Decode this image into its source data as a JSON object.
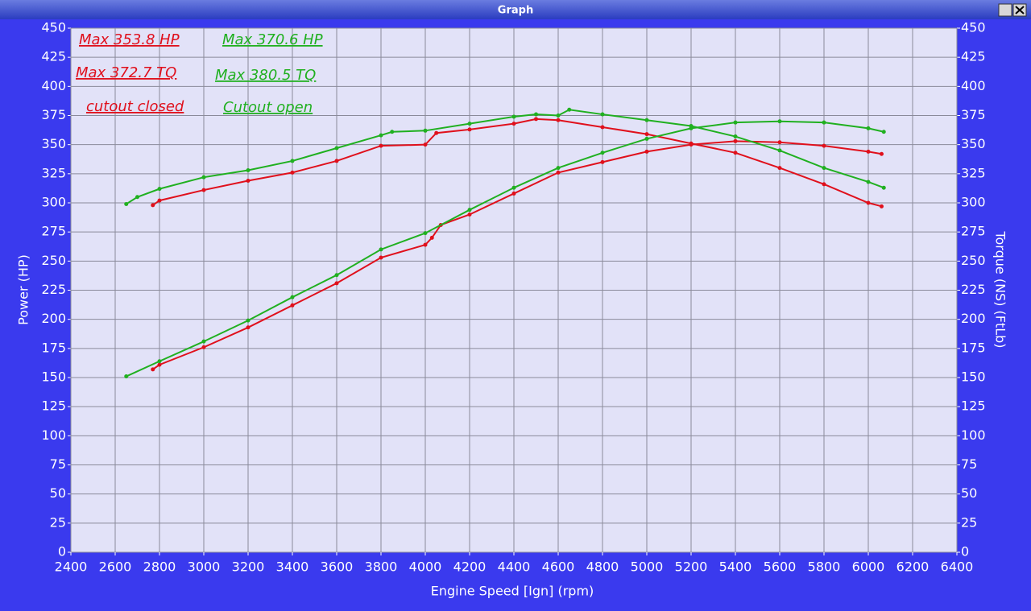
{
  "window_title": "Graph",
  "chart_data": {
    "type": "line",
    "xlabel": "Engine Speed [Ign] (rpm)",
    "ylabel": "Power (HP)",
    "y2label": "Torque (NS) (FtLb)",
    "annotations": [
      "Max 353.8 HP",
      "Max 372.7 TQ",
      "cutout closed",
      "Max 370.6 HP",
      "Max 380.5 TQ",
      "Cutout open"
    ],
    "xlim": [
      2400,
      6400
    ],
    "xticks": [
      2400,
      2600,
      2800,
      3000,
      3200,
      3400,
      3600,
      3800,
      4000,
      4200,
      4400,
      4600,
      4800,
      5000,
      5200,
      5400,
      5600,
      5800,
      6000,
      6200,
      6400
    ],
    "ylim": [
      0,
      450
    ],
    "yticks": [
      0,
      25,
      50,
      75,
      100,
      125,
      150,
      175,
      200,
      225,
      250,
      275,
      300,
      325,
      350,
      375,
      400,
      425,
      450
    ],
    "y2lim": [
      0,
      450
    ],
    "y2ticks": [
      0,
      25,
      50,
      75,
      100,
      125,
      150,
      175,
      200,
      225,
      250,
      275,
      300,
      325,
      350,
      375,
      400,
      425,
      450
    ],
    "grid": true,
    "series": [
      {
        "color": "#e0101c",
        "x": [
          2770,
          2800,
          3000,
          3200,
          3400,
          3600,
          3800,
          4000,
          4030,
          4070,
          4200,
          4400,
          4600,
          4800,
          5000,
          5200,
          5400,
          5600,
          5800,
          6000,
          6060
        ],
        "values": [
          157,
          161,
          176,
          193,
          212,
          231,
          253,
          264,
          270,
          281,
          290,
          308,
          326,
          335,
          344,
          350,
          353,
          352,
          349,
          344,
          342
        ]
      },
      {
        "color": "#e0101c",
        "axis": "y2",
        "x": [
          2770,
          2800,
          3000,
          3200,
          3400,
          3600,
          3800,
          4000,
          4050,
          4200,
          4400,
          4500,
          4600,
          4800,
          5000,
          5200,
          5400,
          5600,
          5800,
          6000,
          6060
        ],
        "values": [
          298,
          302,
          311,
          319,
          326,
          336,
          349,
          350,
          360,
          363,
          368,
          372,
          371,
          365,
          359,
          351,
          343,
          330,
          316,
          300,
          297
        ]
      },
      {
        "color": "#20b020",
        "x": [
          2650,
          2800,
          3000,
          3200,
          3400,
          3600,
          3800,
          4000,
          4200,
          4400,
          4600,
          4800,
          5000,
          5200,
          5400,
          5600,
          5800,
          6000,
          6070
        ],
        "values": [
          151,
          164,
          181,
          199,
          219,
          238,
          260,
          274,
          294,
          313,
          330,
          343,
          355,
          364,
          369,
          370,
          369,
          364,
          361
        ]
      },
      {
        "color": "#20b020",
        "axis": "y2",
        "x": [
          2650,
          2700,
          2800,
          3000,
          3200,
          3400,
          3600,
          3800,
          3850,
          4000,
          4200,
          4400,
          4500,
          4600,
          4650,
          4800,
          5000,
          5200,
          5400,
          5600,
          5800,
          6000,
          6070
        ],
        "values": [
          299,
          305,
          312,
          322,
          328,
          336,
          347,
          358,
          361,
          362,
          368,
          374,
          376,
          375,
          380,
          376,
          371,
          366,
          357,
          345,
          330,
          318,
          313
        ]
      }
    ]
  }
}
